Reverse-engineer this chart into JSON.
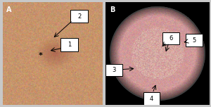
{
  "figsize": [
    3.0,
    1.52
  ],
  "dpi": 100,
  "background_color": "#c8c8c8",
  "panel_A_label": "A",
  "panel_B_label": "B",
  "annotation_fontsize": 6,
  "label_fontsize": 7,
  "skin_base": [
    0.78,
    0.58,
    0.42
  ],
  "lesion_color": [
    0.62,
    0.31,
    0.25
  ],
  "derm_base": [
    0.82,
    0.6,
    0.6
  ],
  "derm_white": [
    0.9,
    0.85,
    0.75
  ]
}
